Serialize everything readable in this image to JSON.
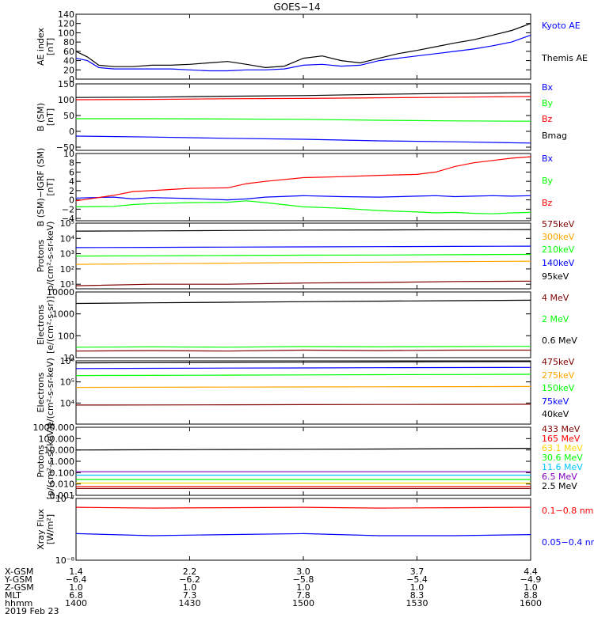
{
  "figure": {
    "title": "GOES−14",
    "time_axis": {
      "start_label": "2019 Feb 23",
      "ticks": [
        "1400",
        "1430",
        "1500",
        "1530",
        "1600"
      ]
    },
    "ephemeris": [
      {
        "label": "X-GSM",
        "values": [
          "1.4",
          "2.2",
          "3.0",
          "3.7",
          "4.4"
        ]
      },
      {
        "label": "Y-GSM",
        "values": [
          "−6.4",
          "−6.2",
          "−5.8",
          "−5.4",
          "−4.9"
        ]
      },
      {
        "label": "Z-GSM",
        "values": [
          "1.0",
          "1.0",
          "1.0",
          "1.0",
          "1.0"
        ]
      },
      {
        "label": "MLT",
        "values": [
          "6.8",
          "7.3",
          "7.8",
          "8.3",
          "8.8"
        ]
      },
      {
        "label": "hhmm",
        "values": [
          "1400",
          "1430",
          "1500",
          "1530",
          "1600"
        ]
      }
    ]
  },
  "chart_data": [
    {
      "id": "ae",
      "type": "line",
      "ylabel": [
        "AE index",
        "[nT]"
      ],
      "yscale": "linear",
      "ylim": [
        0,
        140
      ],
      "yticks": [
        0,
        20,
        40,
        60,
        80,
        100,
        120,
        140
      ],
      "yticklabels": [
        "0",
        "20",
        "40",
        "60",
        "80",
        "100",
        "120",
        "140"
      ],
      "x": [
        0,
        3,
        6,
        10,
        15,
        20,
        25,
        30,
        35,
        40,
        45,
        50,
        55,
        60,
        65,
        70,
        75,
        80,
        85,
        90,
        95,
        100,
        105,
        110,
        115,
        120
      ],
      "series": [
        {
          "name": "Kyoto AE",
          "color": "#0000ff",
          "values": [
            45,
            40,
            25,
            22,
            22,
            22,
            22,
            20,
            18,
            18,
            20,
            20,
            22,
            30,
            32,
            28,
            30,
            40,
            45,
            50,
            55,
            60,
            65,
            72,
            80,
            95
          ]
        },
        {
          "name": "Themis AE",
          "color": "#000000",
          "values": [
            60,
            48,
            30,
            27,
            27,
            30,
            30,
            32,
            35,
            38,
            32,
            25,
            28,
            45,
            50,
            40,
            35,
            45,
            55,
            62,
            70,
            78,
            85,
            95,
            105,
            120
          ]
        }
      ]
    },
    {
      "id": "bsm",
      "type": "line",
      "ylabel": [
        "B (SM)",
        "[nT]"
      ],
      "yscale": "linear",
      "ylim": [
        -60,
        150
      ],
      "yticks": [
        -50,
        0,
        50,
        100,
        150
      ],
      "yticklabels": [
        "−50",
        "0",
        "50",
        "100",
        "150"
      ],
      "x": [
        0,
        20,
        40,
        60,
        80,
        100,
        120
      ],
      "series": [
        {
          "name": "Bx",
          "color": "#0000ff",
          "values": [
            -15,
            -18,
            -22,
            -25,
            -30,
            -33,
            -37
          ]
        },
        {
          "name": "By",
          "color": "#00ff00",
          "values": [
            40,
            40,
            39,
            38,
            35,
            33,
            32
          ]
        },
        {
          "name": "Bz",
          "color": "#ff0000",
          "values": [
            100,
            101,
            103,
            104,
            106,
            108,
            110
          ]
        },
        {
          "name": "Bmag",
          "color": "#000000",
          "values": [
            107,
            108,
            111,
            113,
            117,
            120,
            122
          ]
        }
      ]
    },
    {
      "id": "bigrf",
      "type": "line",
      "ylabel": [
        "B (SM)−IGRF (SM)",
        "[nT]"
      ],
      "yscale": "linear",
      "ylim": [
        -4.5,
        10
      ],
      "yticks": [
        -4,
        -2,
        0,
        2,
        4,
        6,
        8,
        10
      ],
      "yticklabels": [
        "−4",
        "−2",
        "0",
        "2",
        "4",
        "6",
        "8",
        "10"
      ],
      "x": [
        0,
        10,
        15,
        20,
        30,
        40,
        45,
        50,
        60,
        70,
        80,
        90,
        95,
        100,
        105,
        110,
        115,
        120
      ],
      "series": [
        {
          "name": "Bx",
          "color": "#0000ff",
          "values": [
            0.4,
            0.6,
            0.2,
            0.5,
            0.3,
            0.0,
            0.2,
            0.6,
            0.9,
            0.7,
            0.6,
            0.8,
            0.9,
            0.7,
            0.8,
            0.9,
            0.8,
            0.9
          ]
        },
        {
          "name": "By",
          "color": "#00ff00",
          "values": [
            -1.5,
            -1.4,
            -1.0,
            -0.8,
            -0.6,
            -0.5,
            -0.2,
            -0.6,
            -1.5,
            -1.8,
            -2.3,
            -2.6,
            -2.8,
            -2.7,
            -2.9,
            -3.0,
            -2.8,
            -2.7
          ]
        },
        {
          "name": "Bz",
          "color": "#ff0000",
          "values": [
            -0.2,
            1.0,
            1.8,
            2.0,
            2.5,
            2.6,
            3.5,
            4.0,
            4.8,
            5.0,
            5.3,
            5.5,
            6.0,
            7.2,
            8.0,
            8.5,
            9.0,
            9.3
          ]
        }
      ]
    },
    {
      "id": "protons_low",
      "type": "line",
      "ylabel": [
        "Protons",
        "p/(cm²-s-sr-keV)"
      ],
      "yscale": "log",
      "ylim": [
        5,
        100000
      ],
      "yticks": [
        10,
        100,
        1000,
        10000,
        100000
      ],
      "yticklabels": [
        "10¹",
        "10²",
        "10³",
        "10⁴",
        "10⁵"
      ],
      "x": [
        0,
        20,
        40,
        60,
        80,
        100,
        120
      ],
      "series": [
        {
          "name": "575keV",
          "color": "#800000",
          "values": [
            8,
            10,
            10,
            12,
            13,
            15,
            16
          ]
        },
        {
          "name": "300keV",
          "color": "#ffa500",
          "values": [
            200,
            220,
            240,
            260,
            280,
            300,
            320
          ]
        },
        {
          "name": "210keV",
          "color": "#00ff00",
          "values": [
            700,
            720,
            760,
            800,
            820,
            860,
            900
          ]
        },
        {
          "name": "140keV",
          "color": "#0000ff",
          "values": [
            2500,
            2600,
            2700,
            2800,
            2900,
            3000,
            3100
          ]
        },
        {
          "name": "95keV",
          "color": "#000000",
          "values": [
            30000,
            31000,
            33000,
            35000,
            36000,
            37000,
            38000
          ]
        }
      ]
    },
    {
      "id": "electrons_mev",
      "type": "line",
      "ylabel": [
        "Electrons",
        "[e/(cm²-s-sr)]"
      ],
      "yscale": "log",
      "ylim": [
        10,
        10000
      ],
      "yticks": [
        10,
        100,
        1000,
        10000
      ],
      "yticklabels": [
        "10",
        "100",
        "1000",
        "10000"
      ],
      "x": [
        0,
        20,
        40,
        60,
        80,
        100,
        120
      ],
      "series": [
        {
          "name": "4 MeV",
          "color": "#800000",
          "values": [
            20,
            21,
            20,
            22,
            21,
            22,
            22
          ]
        },
        {
          "name": "2 MeV",
          "color": "#00ff00",
          "values": [
            30,
            31,
            30,
            32,
            31,
            32,
            33
          ]
        },
        {
          "name": "0.6 MeV",
          "color": "#000000",
          "values": [
            3000,
            3200,
            3400,
            3600,
            3800,
            4000,
            4200
          ]
        }
      ]
    },
    {
      "id": "electrons_kev",
      "type": "line",
      "ylabel": [
        "Electrons",
        "e/(cm²-s-sr-keV)"
      ],
      "yscale": "log",
      "ylim": [
        1000,
        1000000
      ],
      "yticks": [
        10000,
        100000,
        1000000
      ],
      "yticklabels": [
        "10⁴",
        "10⁵",
        "10⁶"
      ],
      "x": [
        0,
        20,
        40,
        60,
        80,
        100,
        120
      ],
      "series": [
        {
          "name": "475keV",
          "color": "#800000",
          "values": [
            8000,
            8100,
            8200,
            8400,
            8500,
            8600,
            8700
          ]
        },
        {
          "name": "275keV",
          "color": "#ffa500",
          "values": [
            55000,
            56000,
            57000,
            58000,
            59000,
            60000,
            61000
          ]
        },
        {
          "name": "150keV",
          "color": "#00ff00",
          "values": [
            200000,
            205000,
            210000,
            215000,
            220000,
            225000,
            230000
          ]
        },
        {
          "name": "75keV",
          "color": "#0000ff",
          "values": [
            430000,
            440000,
            450000,
            460000,
            470000,
            480000,
            490000
          ]
        },
        {
          "name": "40keV",
          "color": "#000000",
          "values": [
            800000,
            820000,
            840000,
            860000,
            880000,
            900000,
            920000
          ]
        }
      ]
    },
    {
      "id": "protons_high",
      "type": "line",
      "ylabel": [
        "Protons",
        "[p/(cm²-s-sr-keV)]"
      ],
      "yscale": "log",
      "ylim": [
        0.001,
        1000
      ],
      "yticks": [
        0.001,
        0.01,
        0.1,
        1,
        10,
        100,
        1000
      ],
      "yticklabels": [
        "0.001",
        "0.010",
        "0.100",
        "1.000",
        "10.000",
        "100.000",
        "1000.000"
      ],
      "x": [
        0,
        20,
        40,
        60,
        80,
        100,
        120
      ],
      "series": [
        {
          "name": "433 MeV",
          "color": "#800000",
          "values": [
            0.004,
            0.004,
            0.004,
            0.004,
            0.004,
            0.004,
            0.004
          ]
        },
        {
          "name": "165 MeV",
          "color": "#ff0000",
          "values": [
            0.006,
            0.006,
            0.006,
            0.006,
            0.006,
            0.006,
            0.006
          ]
        },
        {
          "name": "63.1 MeV",
          "color": "#ffd700",
          "values": [
            0.012,
            0.012,
            0.012,
            0.012,
            0.012,
            0.012,
            0.012
          ]
        },
        {
          "name": "30.6 MeV",
          "color": "#00ff00",
          "values": [
            0.025,
            0.025,
            0.025,
            0.025,
            0.025,
            0.025,
            0.025
          ]
        },
        {
          "name": "11.6 MeV",
          "color": "#00c8ff",
          "values": [
            0.06,
            0.06,
            0.06,
            0.06,
            0.06,
            0.06,
            0.06
          ]
        },
        {
          "name": "6.5 MeV",
          "color": "#8000c0",
          "values": [
            0.12,
            0.12,
            0.12,
            0.12,
            0.12,
            0.12,
            0.12
          ]
        },
        {
          "name": "2.5 MeV",
          "color": "#000000",
          "values": [
            10,
            10.5,
            11,
            11.5,
            12,
            13,
            14
          ]
        }
      ]
    },
    {
      "id": "xray",
      "type": "line",
      "ylabel": [
        "Xray Flux",
        "[W/m²]"
      ],
      "yscale": "log",
      "ylim": [
        1e-08,
        1e-07
      ],
      "yticks": [
        1e-08,
        1e-07
      ],
      "yticklabels": [
        "10⁻⁸",
        "10⁻⁷"
      ],
      "x": [
        0,
        20,
        40,
        60,
        80,
        100,
        120
      ],
      "series": [
        {
          "name": "0.1−0.8 nm",
          "color": "#ff0000",
          "values": [
            7.2e-08,
            7e-08,
            7.1e-08,
            7.2e-08,
            7e-08,
            7.1e-08,
            7.2e-08
          ]
        },
        {
          "name": "0.05−0.4 nm",
          "color": "#0000ff",
          "values": [
            2.7e-08,
            2.5e-08,
            2.6e-08,
            2.7e-08,
            2.5e-08,
            2.5e-08,
            2.6e-08
          ]
        }
      ]
    }
  ]
}
